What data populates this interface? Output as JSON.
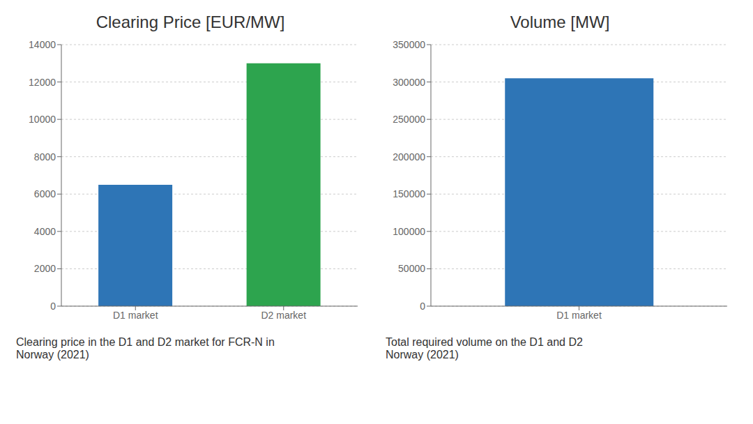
{
  "chart_data": [
    {
      "type": "bar",
      "title": "Clearing Price [EUR/MW]",
      "categories": [
        "D1 market",
        "D2 market"
      ],
      "values": [
        6500,
        13000
      ],
      "colors": [
        "#2e75b6",
        "#2da44e"
      ],
      "ylim": [
        0,
        14000
      ],
      "yticks": [
        0,
        2000,
        4000,
        6000,
        8000,
        10000,
        12000,
        14000
      ],
      "grid": true,
      "annotations": [
        "Clearing price in the D1 and D2 market for FCR-N in\nNorway (2021)"
      ]
    },
    {
      "type": "bar",
      "title": "Volume [MW]",
      "categories": [
        "D1 market"
      ],
      "values": [
        305000
      ],
      "colors": [
        "#2e75b6"
      ],
      "ylim": [
        0,
        350000
      ],
      "yticks": [
        0,
        50000,
        100000,
        150000,
        200000,
        250000,
        300000,
        350000
      ],
      "grid": true,
      "annotations": [
        "Total required volume on the D1 and D2\nNorway (2021)"
      ]
    }
  ]
}
